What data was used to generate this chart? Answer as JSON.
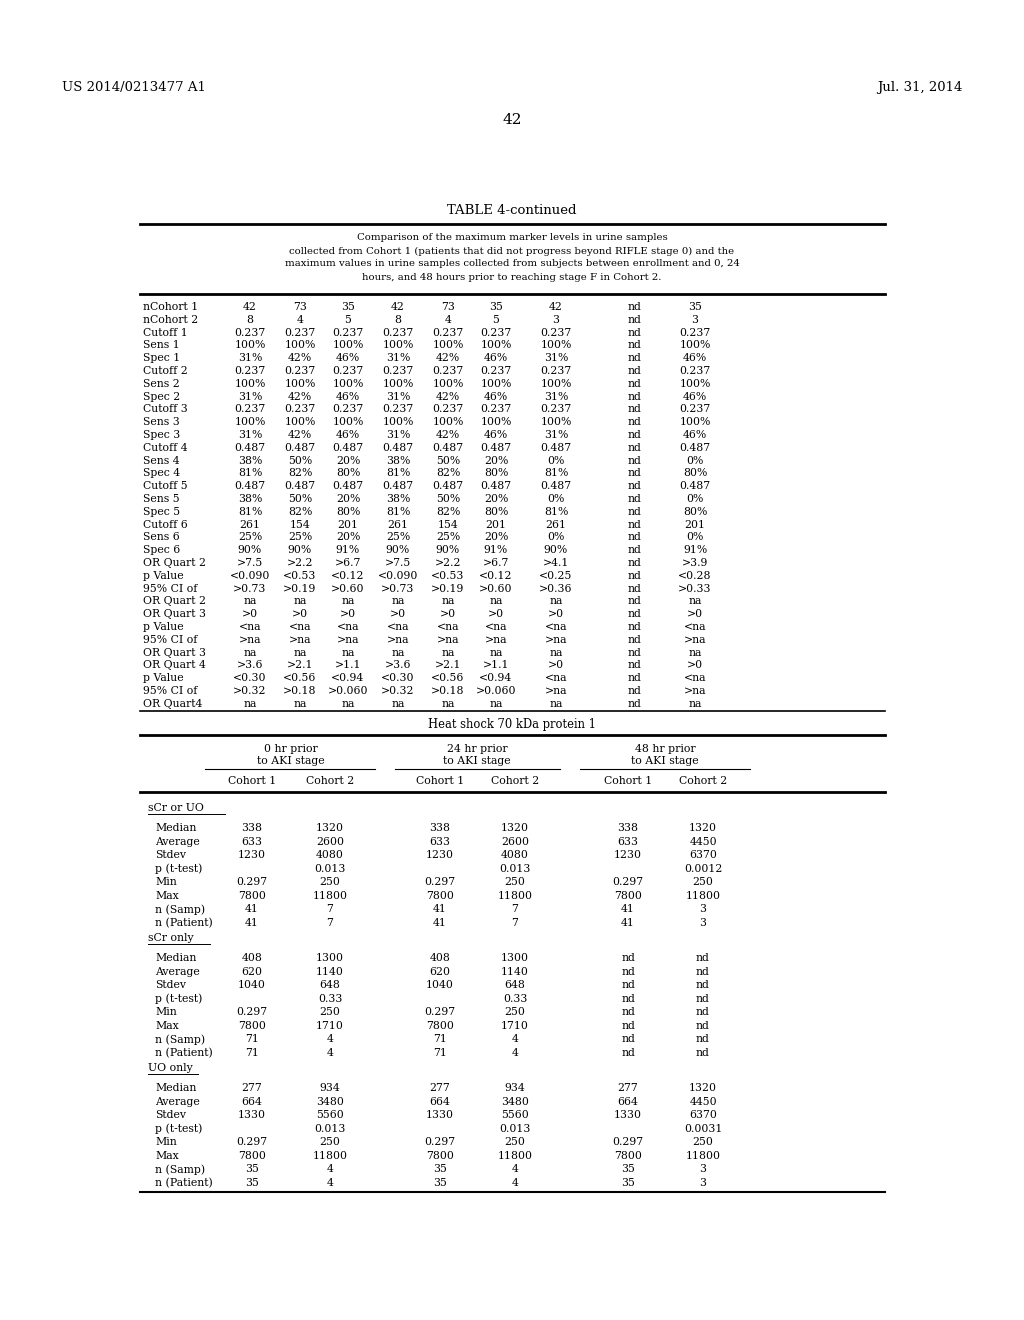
{
  "header_left": "US 2014/0213477 A1",
  "header_right": "Jul. 31, 2014",
  "page_number": "42",
  "table_title": "TABLE 4-continued",
  "table_caption_lines": [
    "Comparison of the maximum marker levels in urine samples",
    "collected from Cohort 1 (patients that did not progress beyond RIFLE stage 0) and the",
    "maximum values in urine samples collected from subjects between enrollment and 0, 24",
    "hours, and 48 hours prior to reaching stage F in Cohort 2."
  ],
  "top_table_rows": [
    [
      "nCohort 1",
      "42",
      "73",
      "35",
      "42",
      "73",
      "35",
      "42",
      "nd",
      "35"
    ],
    [
      "nCohort 2",
      "8",
      "4",
      "5",
      "8",
      "4",
      "5",
      "3",
      "nd",
      "3"
    ],
    [
      "Cutoff 1",
      "0.237",
      "0.237",
      "0.237",
      "0.237",
      "0.237",
      "0.237",
      "0.237",
      "nd",
      "0.237"
    ],
    [
      "Sens 1",
      "100%",
      "100%",
      "100%",
      "100%",
      "100%",
      "100%",
      "100%",
      "nd",
      "100%"
    ],
    [
      "Spec 1",
      "31%",
      "42%",
      "46%",
      "31%",
      "42%",
      "46%",
      "31%",
      "nd",
      "46%"
    ],
    [
      "Cutoff 2",
      "0.237",
      "0.237",
      "0.237",
      "0.237",
      "0.237",
      "0.237",
      "0.237",
      "nd",
      "0.237"
    ],
    [
      "Sens 2",
      "100%",
      "100%",
      "100%",
      "100%",
      "100%",
      "100%",
      "100%",
      "nd",
      "100%"
    ],
    [
      "Spec 2",
      "31%",
      "42%",
      "46%",
      "31%",
      "42%",
      "46%",
      "31%",
      "nd",
      "46%"
    ],
    [
      "Cutoff 3",
      "0.237",
      "0.237",
      "0.237",
      "0.237",
      "0.237",
      "0.237",
      "0.237",
      "nd",
      "0.237"
    ],
    [
      "Sens 3",
      "100%",
      "100%",
      "100%",
      "100%",
      "100%",
      "100%",
      "100%",
      "nd",
      "100%"
    ],
    [
      "Spec 3",
      "31%",
      "42%",
      "46%",
      "31%",
      "42%",
      "46%",
      "31%",
      "nd",
      "46%"
    ],
    [
      "Cutoff 4",
      "0.487",
      "0.487",
      "0.487",
      "0.487",
      "0.487",
      "0.487",
      "0.487",
      "nd",
      "0.487"
    ],
    [
      "Sens 4",
      "38%",
      "50%",
      "20%",
      "38%",
      "50%",
      "20%",
      "0%",
      "nd",
      "0%"
    ],
    [
      "Spec 4",
      "81%",
      "82%",
      "80%",
      "81%",
      "82%",
      "80%",
      "81%",
      "nd",
      "80%"
    ],
    [
      "Cutoff 5",
      "0.487",
      "0.487",
      "0.487",
      "0.487",
      "0.487",
      "0.487",
      "0.487",
      "nd",
      "0.487"
    ],
    [
      "Sens 5",
      "38%",
      "50%",
      "20%",
      "38%",
      "50%",
      "20%",
      "0%",
      "nd",
      "0%"
    ],
    [
      "Spec 5",
      "81%",
      "82%",
      "80%",
      "81%",
      "82%",
      "80%",
      "81%",
      "nd",
      "80%"
    ],
    [
      "Cutoff 6",
      "261",
      "154",
      "201",
      "261",
      "154",
      "201",
      "261",
      "nd",
      "201"
    ],
    [
      "Sens 6",
      "25%",
      "25%",
      "20%",
      "25%",
      "25%",
      "20%",
      "0%",
      "nd",
      "0%"
    ],
    [
      "Spec 6",
      "90%",
      "90%",
      "91%",
      "90%",
      "90%",
      "91%",
      "90%",
      "nd",
      "91%"
    ],
    [
      "OR Quart 2",
      ">7.5",
      ">2.2",
      ">6.7",
      ">7.5",
      ">2.2",
      ">6.7",
      ">4.1",
      "nd",
      ">3.9"
    ],
    [
      "p Value",
      "<0.090",
      "<0.53",
      "<0.12",
      "<0.090",
      "<0.53",
      "<0.12",
      "<0.25",
      "nd",
      "<0.28"
    ],
    [
      "95% CI of",
      ">0.73",
      ">0.19",
      ">0.60",
      ">0.73",
      ">0.19",
      ">0.60",
      ">0.36",
      "nd",
      ">0.33"
    ],
    [
      "OR Quart 2",
      "na",
      "na",
      "na",
      "na",
      "na",
      "na",
      "na",
      "nd",
      "na"
    ],
    [
      "OR Quart 3",
      ">0",
      ">0",
      ">0",
      ">0",
      ">0",
      ">0",
      ">0",
      "nd",
      ">0"
    ],
    [
      "p Value",
      "<na",
      "<na",
      "<na",
      "<na",
      "<na",
      "<na",
      "<na",
      "nd",
      "<na"
    ],
    [
      "95% CI of",
      ">na",
      ">na",
      ">na",
      ">na",
      ">na",
      ">na",
      ">na",
      "nd",
      ">na"
    ],
    [
      "OR Quart 3",
      "na",
      "na",
      "na",
      "na",
      "na",
      "na",
      "na",
      "nd",
      "na"
    ],
    [
      "OR Quart 4",
      ">3.6",
      ">2.1",
      ">1.1",
      ">3.6",
      ">2.1",
      ">1.1",
      ">0",
      "nd",
      ">0"
    ],
    [
      "p Value",
      "<0.30",
      "<0.56",
      "<0.94",
      "<0.30",
      "<0.56",
      "<0.94",
      "<na",
      "nd",
      "<na"
    ],
    [
      "95% CI of",
      ">0.32",
      ">0.18",
      ">0.060",
      ">0.32",
      ">0.18",
      ">0.060",
      ">na",
      "nd",
      ">na"
    ],
    [
      "OR Quart4",
      "na",
      "na",
      "na",
      "na",
      "na",
      "na",
      "na",
      "nd",
      "na"
    ]
  ],
  "section2_title": "Heat shock 70 kDa protein 1",
  "col_groups": [
    {
      "label": "0 hr prior\nto AKI stage",
      "span": 2
    },
    {
      "label": "24 hr prior\nto AKI stage",
      "span": 2
    },
    {
      "label": "48 hr prior\nto AKI stage",
      "span": 2
    }
  ],
  "col_headers": [
    "Cohort 1",
    "Cohort 2",
    "Cohort 1",
    "Cohort 2",
    "Cohort 1",
    "Cohort 2"
  ],
  "section_scr_uo": "sCr or UO",
  "scr_uo_rows": [
    [
      "Median",
      "338",
      "1320",
      "338",
      "1320",
      "338",
      "1320"
    ],
    [
      "Average",
      "633",
      "2600",
      "633",
      "2600",
      "633",
      "4450"
    ],
    [
      "Stdev",
      "1230",
      "4080",
      "1230",
      "4080",
      "1230",
      "6370"
    ],
    [
      "p (t-test)",
      "",
      "0.013",
      "",
      "0.013",
      "",
      "0.0012"
    ],
    [
      "Min",
      "0.297",
      "250",
      "0.297",
      "250",
      "0.297",
      "250"
    ],
    [
      "Max",
      "7800",
      "11800",
      "7800",
      "11800",
      "7800",
      "11800"
    ],
    [
      "n (Samp)",
      "41",
      "7",
      "41",
      "7",
      "41",
      "3"
    ],
    [
      "n (Patient)",
      "41",
      "7",
      "41",
      "7",
      "41",
      "3"
    ]
  ],
  "section_scr_only": "sCr only",
  "scr_only_rows": [
    [
      "Median",
      "408",
      "1300",
      "408",
      "1300",
      "nd",
      "nd"
    ],
    [
      "Average",
      "620",
      "1140",
      "620",
      "1140",
      "nd",
      "nd"
    ],
    [
      "Stdev",
      "1040",
      "648",
      "1040",
      "648",
      "nd",
      "nd"
    ],
    [
      "p (t-test)",
      "",
      "0.33",
      "",
      "0.33",
      "nd",
      "nd"
    ],
    [
      "Min",
      "0.297",
      "250",
      "0.297",
      "250",
      "nd",
      "nd"
    ],
    [
      "Max",
      "7800",
      "1710",
      "7800",
      "1710",
      "nd",
      "nd"
    ],
    [
      "n (Samp)",
      "71",
      "4",
      "71",
      "4",
      "nd",
      "nd"
    ],
    [
      "n (Patient)",
      "71",
      "4",
      "71",
      "4",
      "nd",
      "nd"
    ]
  ],
  "section_uo_only": "UO only",
  "uo_only_rows": [
    [
      "Median",
      "277",
      "934",
      "277",
      "934",
      "277",
      "1320"
    ],
    [
      "Average",
      "664",
      "3480",
      "664",
      "3480",
      "664",
      "4450"
    ],
    [
      "Stdev",
      "1330",
      "5560",
      "1330",
      "5560",
      "1330",
      "6370"
    ],
    [
      "p (t-test)",
      "",
      "0.013",
      "",
      "0.013",
      "",
      "0.0031"
    ],
    [
      "Min",
      "0.297",
      "250",
      "0.297",
      "250",
      "0.297",
      "250"
    ],
    [
      "Max",
      "7800",
      "11800",
      "7800",
      "11800",
      "7800",
      "11800"
    ],
    [
      "n (Samp)",
      "35",
      "4",
      "35",
      "4",
      "35",
      "3"
    ],
    [
      "n (Patient)",
      "35",
      "4",
      "35",
      "4",
      "35",
      "3"
    ]
  ]
}
